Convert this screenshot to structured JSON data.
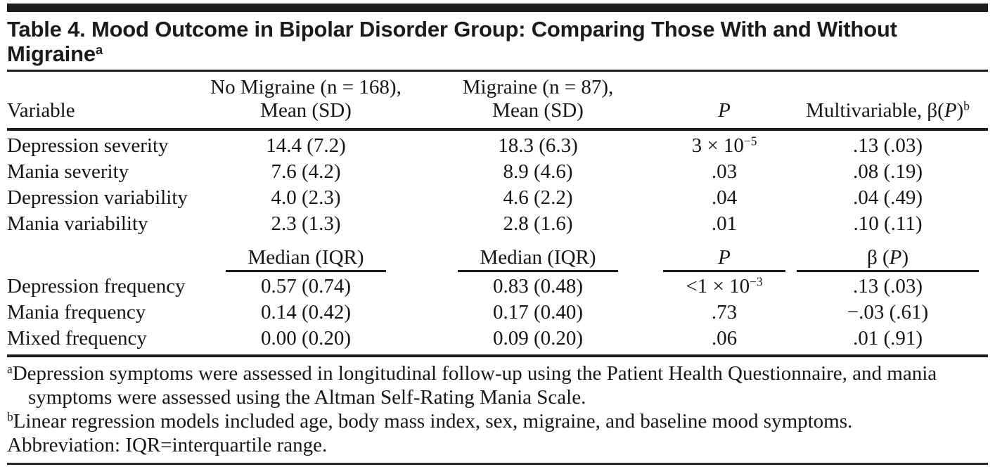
{
  "title": {
    "line1": "Table 4. Mood Outcome in Bipolar Disorder Group: Comparing Those With and Without",
    "line2": "Migraine",
    "superscript": "a"
  },
  "table": {
    "header": {
      "variable": "Variable",
      "no_migraine_line1": "No Migraine (n = 168),",
      "no_migraine_line2": "Mean (SD)",
      "migraine_line1": "Migraine (n = 87),",
      "migraine_line2": "Mean (SD)",
      "p": "P",
      "multivariable_pre": "Multivariable, β(",
      "multivariable_p": "P",
      "multivariable_post": ")",
      "multivariable_sup": "b"
    },
    "rows_top": [
      {
        "cells": [
          "Depression severity",
          "14.4 (7.2)",
          "18.3 (6.3)",
          {
            "base": "3 × 10",
            "sup": "−5"
          },
          ".13 (.03)"
        ]
      },
      {
        "cells": [
          "Mania severity",
          "7.6 (4.2)",
          "8.9 (4.6)",
          ".03",
          ".08 (.19)"
        ]
      },
      {
        "cells": [
          "Depression variability",
          "4.0 (2.3)",
          "4.6 (2.2)",
          ".04",
          ".04 (.49)"
        ]
      },
      {
        "cells": [
          "Mania variability",
          "2.3 (1.3)",
          "2.8 (1.6)",
          ".01",
          ".10 (.11)"
        ]
      }
    ],
    "subheader": {
      "median_no_migraine": "Median (IQR)",
      "median_migraine": "Median (IQR)",
      "p": "P",
      "beta_pre": "β (",
      "beta_p": "P",
      "beta_post": ")"
    },
    "rows_bottom": [
      {
        "cells": [
          "Depression frequency",
          "0.57 (0.74)",
          "0.83 (0.48)",
          {
            "base": "<1 × 10",
            "sup": "−3"
          },
          ".13 (.03)"
        ]
      },
      {
        "cells": [
          "Mania frequency",
          "0.14 (0.42)",
          "0.17 (0.40)",
          ".73",
          "−.03 (.61)"
        ]
      },
      {
        "cells": [
          "Mixed frequency",
          "0.00 (0.20)",
          "0.09 (0.20)",
          ".06",
          ".01 (.91)"
        ]
      }
    ]
  },
  "footnotes": {
    "a_sup": "a",
    "a_text": "Depression symptoms were assessed in longitudinal follow-up using the Patient Health Questionnaire, and mania symptoms were assessed using the Altman Self-Rating Mania Scale.",
    "b_sup": "b",
    "b_text": "Linear regression models included age, body mass index, sex, migraine, and baseline mood symptoms.",
    "abbreviation": "Abbreviation: IQR=interquartile range."
  },
  "colors": {
    "text": "#161616",
    "rule": "#1b1b1b",
    "background": "#ffffff"
  }
}
